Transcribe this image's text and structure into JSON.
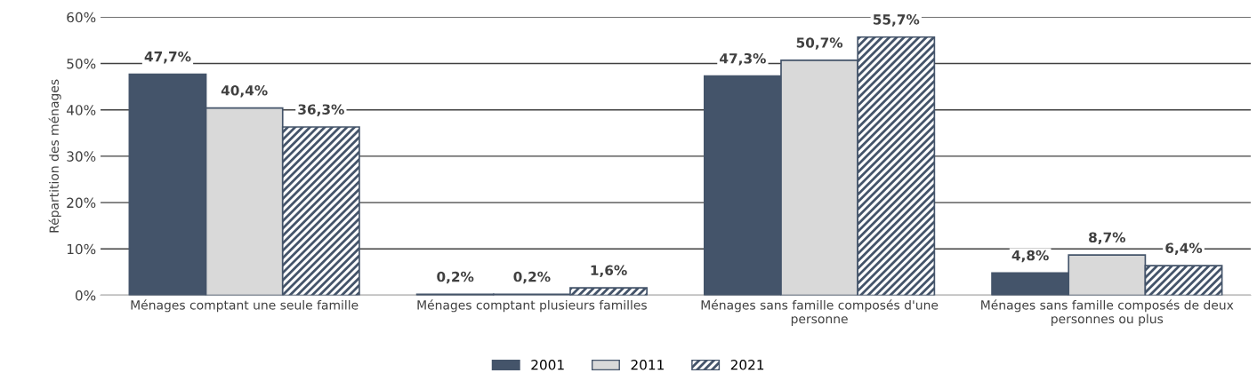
{
  "chart_data": {
    "type": "bar",
    "ylabel": "Répartition des ménages",
    "categories": [
      "Ménages comptant une seule famille",
      "Ménages comptant plusieurs familles",
      "Ménages sans famille composés d'une\npersonne",
      "Ménages sans famille composés de deux\npersonnes ou plus"
    ],
    "series": [
      {
        "name": "2001",
        "color": "#44546a",
        "values": [
          47.7,
          0.2,
          47.3,
          4.8
        ],
        "value_labels": [
          "47,7%",
          "0,2%",
          "47,3%",
          "4,8%"
        ]
      },
      {
        "name": "2011",
        "color": "#d9d9d9",
        "values": [
          40.4,
          0.2,
          50.7,
          8.7
        ],
        "value_labels": [
          "40,4%",
          "0,2%",
          "50,7%",
          "8,7%"
        ]
      },
      {
        "name": "2021",
        "color": "#44546a",
        "values": [
          36.3,
          1.6,
          55.7,
          6.4
        ],
        "value_labels": [
          "36,3%",
          "1,6%",
          "55,7%",
          "6,4%"
        ]
      }
    ],
    "ylim": [
      0,
      60
    ],
    "yticks": [
      {
        "value": 0,
        "label": "0%"
      },
      {
        "value": 10,
        "label": "10%"
      },
      {
        "value": 20,
        "label": "20%"
      },
      {
        "value": 30,
        "label": "30%"
      },
      {
        "value": 40,
        "label": "40%"
      },
      {
        "value": 50,
        "label": "50%"
      },
      {
        "value": 60,
        "label": "60%"
      }
    ],
    "grid": "y",
    "legend": "bottom"
  }
}
